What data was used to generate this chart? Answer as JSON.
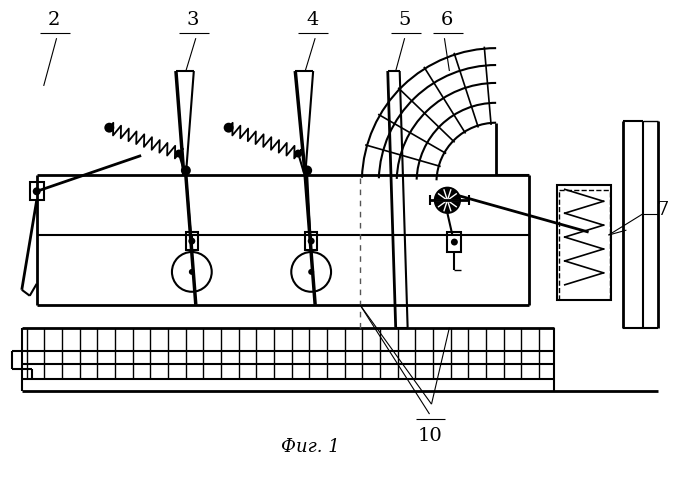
{
  "bg_color": "#ffffff",
  "line_color": "#000000",
  "fig_label": "Фиг. 1"
}
